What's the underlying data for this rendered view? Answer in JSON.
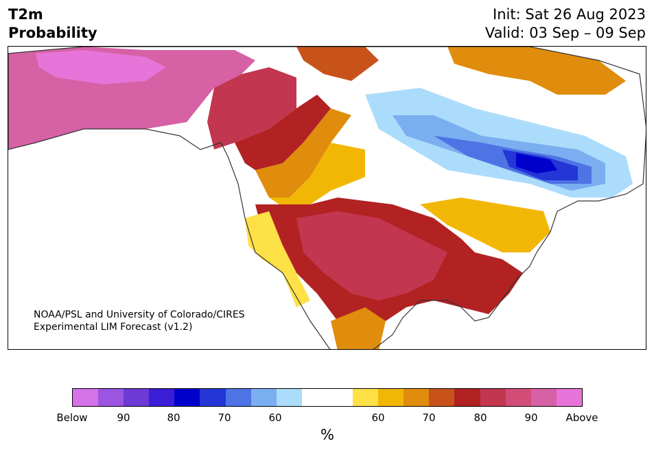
{
  "header": {
    "variable": "T2m",
    "product": "Probability",
    "init": "Init: Sat 26 Aug 2023",
    "valid": "Valid: 03 Sep – 09 Sep"
  },
  "credit": {
    "line1": "NOAA/PSL and University of Colorado/CIRES",
    "line2": "Experimental LIM Forecast (v1.2)"
  },
  "colorbar": {
    "unit": "%",
    "colors": [
      "#d672e8",
      "#9b55e0",
      "#6d3ad6",
      "#3a1ed6",
      "#0000cd",
      "#2436d6",
      "#4d73e5",
      "#7aaef0",
      "#abdcfb",
      "#ffffff",
      "#ffffff",
      "#fde147",
      "#f2b705",
      "#e08c0c",
      "#c8531a",
      "#b22222",
      "#c2364f",
      "#d14d78",
      "#d661a5",
      "#e774d8"
    ],
    "ticks": [
      "Below",
      "90",
      "80",
      "70",
      "60",
      "60",
      "70",
      "80",
      "90",
      "Above"
    ]
  },
  "map": {
    "region": "North America",
    "palette": {
      "above_max": "#e774d8",
      "above_90": "#d661a5",
      "above_85": "#d14d78",
      "above_80": "#c2364f",
      "above_75": "#b22222",
      "above_70": "#c8531a",
      "above_65": "#e08c0c",
      "above_60": "#f2b705",
      "above_55": "#fde147",
      "neutral": "#ffffff",
      "below_55": "#abdcfb",
      "below_60": "#7aaef0",
      "below_65": "#4d73e5",
      "below_70": "#2436d6",
      "below_75": "#0000cd",
      "coast": "#333333"
    }
  }
}
